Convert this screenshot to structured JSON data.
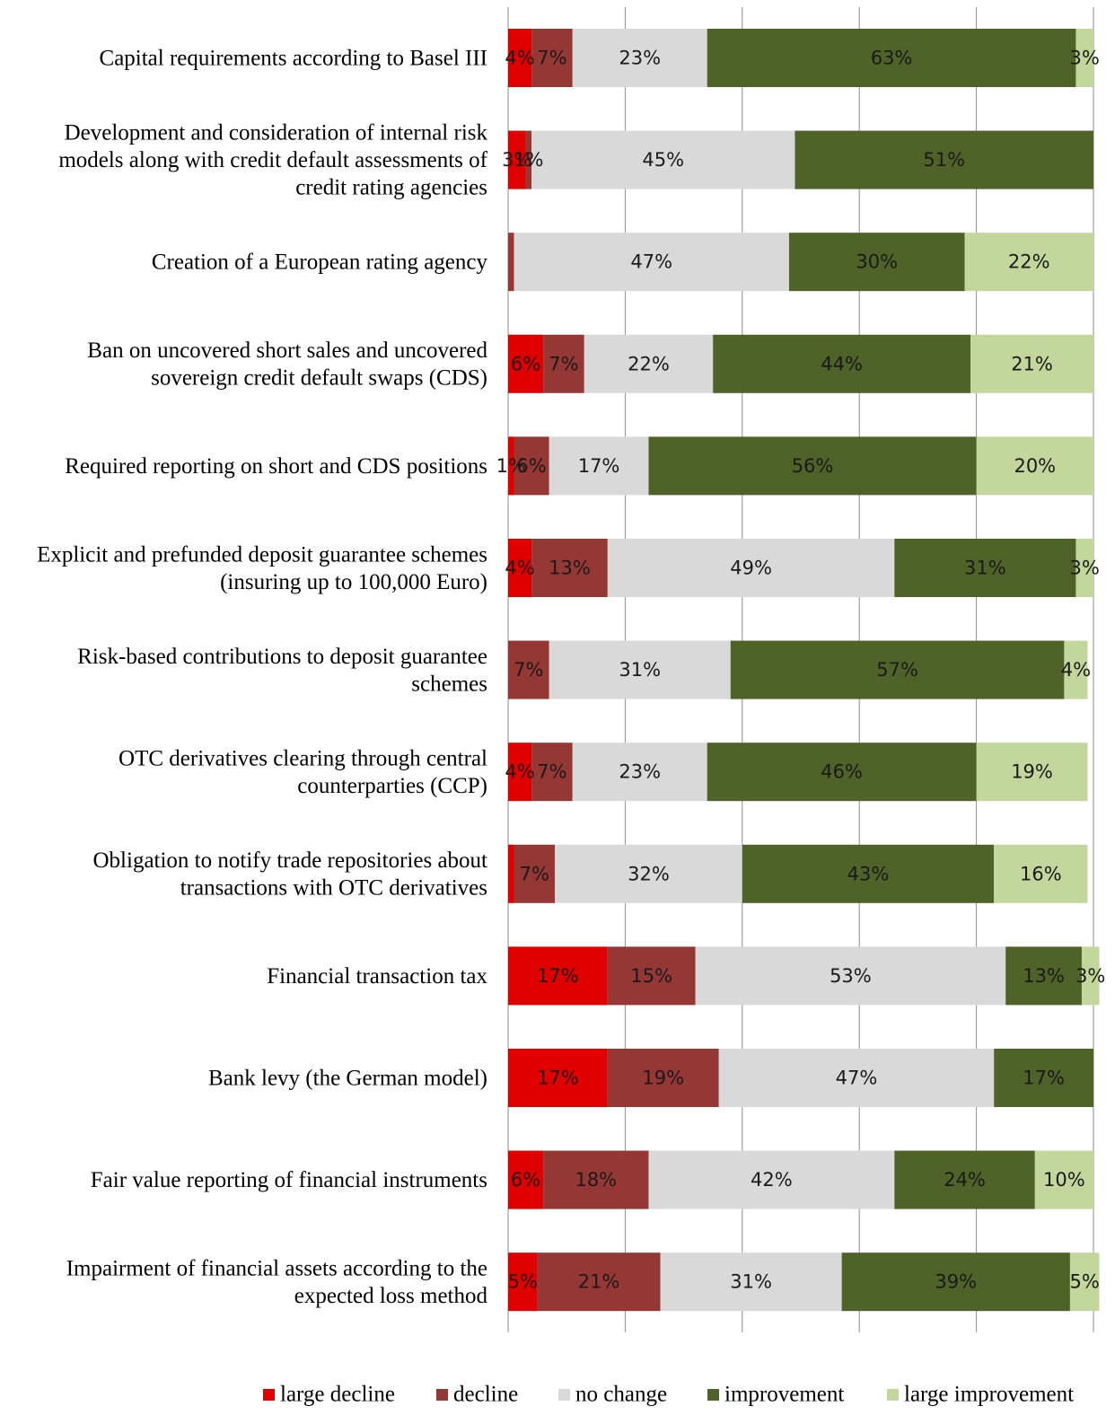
{
  "chart_data": {
    "type": "bar",
    "orientation": "horizontal",
    "stacked": true,
    "percent_stacked": true,
    "xlim": [
      0,
      100
    ],
    "grid": true,
    "legend_position": "bottom",
    "categories": [
      "Capital requirements according to Basel III",
      "Development and consideration of internal risk models along with credit default assessments of credit rating agencies",
      "Creation of a European rating agency",
      "Ban on uncovered short sales and uncovered sovereign credit default swaps (CDS)",
      "Required reporting on short and CDS positions",
      "Explicit and prefunded deposit guarantee schemes (insuring up to 100,000 Euro)",
      "Risk-based contributions to deposit guarantee schemes",
      "OTC derivatives clearing through central counterparties (CCP)",
      "Obligation to notify trade repositories about transactions with OTC derivatives",
      "Financial transaction tax",
      "Bank levy (the German model)",
      "Fair value reporting of financial instruments",
      "Impairment of financial assets according to the expected loss method"
    ],
    "category_lines": [
      [
        "Capital requirements according to Basel III"
      ],
      [
        "Development and consideration of internal risk",
        "models along with credit default assessments of",
        "credit rating agencies"
      ],
      [
        "Creation of a European rating agency"
      ],
      [
        "Ban on uncovered short sales and uncovered",
        "sovereign credit default swaps (CDS)"
      ],
      [
        "Required reporting on short and CDS positions"
      ],
      [
        "Explicit and prefunded deposit guarantee schemes",
        "(insuring up to 100,000 Euro)"
      ],
      [
        "Risk-based contributions to deposit guarantee",
        "schemes"
      ],
      [
        "OTC derivatives clearing through central",
        "counterparties (CCP)"
      ],
      [
        "Obligation to notify trade repositories about",
        "transactions with OTC derivatives"
      ],
      [
        "Financial transaction tax"
      ],
      [
        "Bank levy (the German model)"
      ],
      [
        "Fair value reporting of financial instruments"
      ],
      [
        "Impairment of financial assets according to the",
        "expected loss method"
      ]
    ],
    "series": [
      {
        "name": "large decline",
        "color": "#e00000",
        "values": [
          4,
          3,
          0,
          6,
          1,
          4,
          0,
          4,
          1,
          17,
          17,
          6,
          5
        ],
        "labels": [
          "4%",
          "3%",
          "",
          "6%",
          "1%",
          "4%",
          "",
          "4%",
          "",
          "17%",
          "17%",
          "6%",
          "5%"
        ]
      },
      {
        "name": "decline",
        "color": "#953735",
        "values": [
          7,
          1,
          1,
          7,
          6,
          13,
          7,
          7,
          7,
          15,
          19,
          18,
          21
        ],
        "labels": [
          "7%",
          "1%",
          "",
          "7%",
          "6%",
          "13%",
          "7%",
          "7%",
          "7%",
          "15%",
          "19%",
          "18%",
          "21%"
        ]
      },
      {
        "name": "no change",
        "color": "#d9d9d9",
        "values": [
          23,
          45,
          47,
          22,
          17,
          49,
          31,
          23,
          32,
          53,
          47,
          42,
          31
        ],
        "labels": [
          "23%",
          "45%",
          "47%",
          "22%",
          "17%",
          "49%",
          "31%",
          "23%",
          "32%",
          "53%",
          "47%",
          "42%",
          "31%"
        ]
      },
      {
        "name": "improvement",
        "color": "#4f6228",
        "values": [
          63,
          51,
          30,
          44,
          56,
          31,
          57,
          46,
          43,
          13,
          17,
          24,
          39
        ],
        "labels": [
          "63%",
          "51%",
          "30%",
          "44%",
          "56%",
          "31%",
          "57%",
          "46%",
          "43%",
          "13%",
          "17%",
          "24%",
          "39%"
        ]
      },
      {
        "name": "large improvement",
        "color": "#c3d69b",
        "values": [
          3,
          0,
          22,
          21,
          20,
          3,
          4,
          19,
          16,
          3,
          0,
          10,
          5
        ],
        "labels": [
          "3%",
          "",
          "22%",
          "21%",
          "20%",
          "3%",
          "4%",
          "19%",
          "16%",
          "3%",
          "",
          "10%",
          "5%"
        ]
      }
    ]
  }
}
